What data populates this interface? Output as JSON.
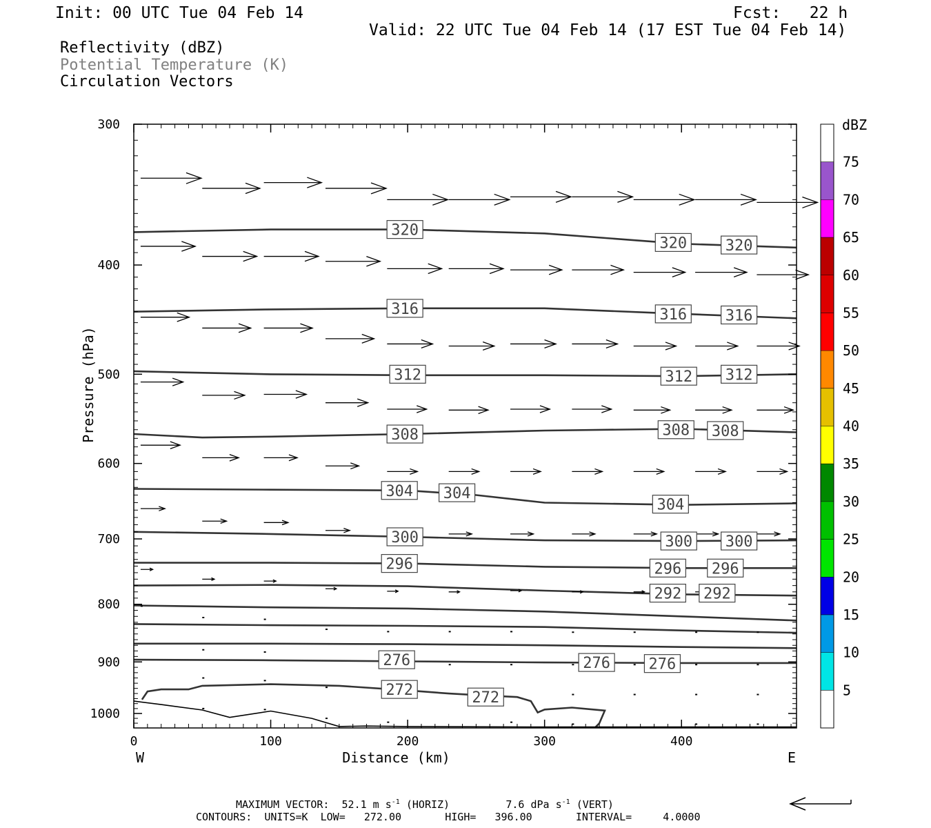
{
  "header": {
    "init": "Init: 00 UTC Tue 04 Feb 14",
    "fcst": "Fcst:   22 h",
    "valid": "Valid: 22 UTC Tue 04 Feb 14 (17 EST Tue 04 Feb 14)"
  },
  "legend": {
    "reflectivity": "Reflectivity (dBZ)",
    "theta": "Potential Temperature (K)",
    "vectors": "Circulation Vectors"
  },
  "footer": {
    "maxvec_label": "MAXIMUM VECTOR:",
    "horiz": "52.1 m s",
    "horiz_tag": "(HORIZ)",
    "vert": "7.6 dPa s",
    "vert_tag": "(VERT)",
    "exp": "-1",
    "contours": "CONTOURS:  UNITS=K  LOW=   272.00       HIGH=   396.00       INTERVAL=     4.0000"
  },
  "colors": {
    "contour": "#333333",
    "theta_text": "#808080"
  },
  "chart_data": {
    "type": "line",
    "title": "",
    "xlabel": "Distance (km)",
    "ylabel": "Pressure (hPa)",
    "xlim": [
      0,
      484
    ],
    "ylim": [
      1030,
      300
    ],
    "y_scale": "log",
    "xticks": [
      "0",
      "100",
      "200",
      "300",
      "400"
    ],
    "yticks": [
      "300",
      "400",
      "500",
      "600",
      "700",
      "800",
      "900",
      "1000"
    ],
    "x_end_labels": {
      "left": "W",
      "right": "E"
    },
    "colorbar": {
      "unit": "dBZ",
      "labels": [
        "5",
        "10",
        "15",
        "20",
        "25",
        "30",
        "35",
        "40",
        "45",
        "50",
        "55",
        "60",
        "65",
        "70",
        "75"
      ],
      "colors": [
        "#ffffff",
        "#00e5e5",
        "#0099e5",
        "#0000e5",
        "#00e500",
        "#00c000",
        "#008800",
        "#ffff00",
        "#e5c000",
        "#ff8800",
        "#ff0000",
        "#dd0000",
        "#bb0000",
        "#ff00ff",
        "#9955cc",
        "#ffffff"
      ]
    },
    "theta_contours": [
      {
        "level": 320,
        "x": [
          0,
          50,
          100,
          150,
          200,
          300,
          400,
          484
        ],
        "p": [
          374,
          373,
          372,
          372,
          372,
          375,
          383,
          386
        ],
        "labels": [
          [
            198,
            372,
            "320"
          ],
          [
            394,
            382,
            "320"
          ],
          [
            442,
            384,
            "320"
          ]
        ]
      },
      {
        "level": 316,
        "x": [
          0,
          100,
          200,
          300,
          380,
          484
        ],
        "p": [
          440,
          438,
          437,
          437,
          441,
          446
        ],
        "labels": [
          [
            198,
            437,
            "316"
          ],
          [
            394,
            442,
            "316"
          ],
          [
            442,
            443,
            "316"
          ]
        ]
      },
      {
        "level": 312,
        "x": [
          0,
          100,
          200,
          300,
          400,
          484
        ],
        "p": [
          497,
          500,
          501,
          501,
          502,
          500
        ],
        "labels": [
          [
            200,
            500,
            "312"
          ],
          [
            398,
            502,
            "312"
          ],
          [
            442,
            500,
            "312"
          ]
        ]
      },
      {
        "level": 308,
        "x": [
          0,
          50,
          100,
          200,
          300,
          400,
          484
        ],
        "p": [
          565,
          569,
          568,
          565,
          561,
          559,
          563
        ],
        "labels": [
          [
            198,
            565,
            "308"
          ],
          [
            396,
            560,
            "308"
          ],
          [
            432,
            561,
            "308"
          ]
        ]
      },
      {
        "level": 304,
        "x": [
          0,
          100,
          200,
          250,
          300,
          400,
          484
        ],
        "p": [
          632,
          633,
          634,
          640,
          650,
          653,
          651
        ],
        "labels": [
          [
            194,
            634,
            "304"
          ],
          [
            236,
            637,
            "304"
          ],
          [
            392,
            652,
            "304"
          ]
        ]
      },
      {
        "level": 300,
        "x": [
          0,
          100,
          200,
          300,
          400,
          484
        ],
        "p": [
          690,
          693,
          697,
          702,
          703,
          702
        ],
        "labels": [
          [
            198,
            697,
            "300"
          ],
          [
            398,
            703,
            "300"
          ],
          [
            442,
            703,
            "300"
          ]
        ]
      },
      {
        "level": 296,
        "x": [
          0,
          100,
          200,
          300,
          400,
          484
        ],
        "p": [
          735,
          735,
          736,
          741,
          743,
          743
        ],
        "labels": [
          [
            194,
            736,
            "296"
          ],
          [
            390,
            743,
            "296"
          ],
          [
            432,
            743,
            "296"
          ]
        ]
      },
      {
        "level": 292,
        "x": [
          0,
          100,
          200,
          300,
          400,
          484
        ],
        "p": [
          770,
          769,
          771,
          778,
          784,
          786
        ],
        "labels": [
          [
            390,
            782,
            "292"
          ],
          [
            426,
            782,
            "292"
          ]
        ]
      },
      {
        "level": 288,
        "x": [
          0,
          100,
          200,
          300,
          400,
          484
        ],
        "p": [
          802,
          805,
          807,
          812,
          820,
          827
        ],
        "labels": []
      },
      {
        "level": 284,
        "x": [
          0,
          100,
          200,
          300,
          400,
          484
        ],
        "p": [
          833,
          835,
          836,
          838,
          844,
          848
        ],
        "labels": []
      },
      {
        "level": 280,
        "x": [
          0,
          100,
          200,
          300,
          400,
          484
        ],
        "p": [
          867,
          867,
          868,
          870,
          873,
          875
        ],
        "labels": []
      },
      {
        "level": 276,
        "x": [
          0,
          100,
          200,
          300,
          400,
          484
        ],
        "p": [
          896,
          897,
          899,
          901,
          902,
          902
        ],
        "labels": [
          [
            192,
            896,
            "276"
          ],
          [
            338,
            901,
            "276"
          ],
          [
            386,
            903,
            "276"
          ]
        ]
      },
      {
        "level": 272,
        "x": [
          6,
          10,
          20,
          40,
          50,
          100,
          150,
          200,
          230,
          250,
          280,
          290,
          295,
          300,
          320,
          344,
          340,
          337
        ],
        "p": [
          972,
          956,
          952,
          952,
          945,
          942,
          945,
          954,
          960,
          963,
          967,
          975,
          998,
          992,
          988,
          994,
          1020,
          1029
        ],
        "labels": [
          [
            194,
            952,
            "272"
          ],
          [
            257,
            967,
            "272"
          ]
        ]
      }
    ],
    "terrain": {
      "x": [
        0,
        20,
        50,
        70,
        100,
        130,
        150,
        170,
        200,
        300,
        400,
        484
      ],
      "p": [
        975,
        982,
        993,
        1008,
        995,
        1010,
        1027,
        1026,
        1027,
        1028,
        1028,
        1028
      ]
    },
    "vectors": [
      {
        "x": 5,
        "p": 335,
        "u": 1.0
      },
      {
        "x": 50,
        "p": 342,
        "u": 0.95
      },
      {
        "x": 95,
        "p": 338,
        "u": 0.95
      },
      {
        "x": 140,
        "p": 342,
        "u": 1.0
      },
      {
        "x": 185,
        "p": 350,
        "u": 1.0
      },
      {
        "x": 230,
        "p": 350,
        "u": 1.0
      },
      {
        "x": 275,
        "p": 348,
        "u": 1.0
      },
      {
        "x": 320,
        "p": 348,
        "u": 1.0
      },
      {
        "x": 365,
        "p": 350,
        "u": 1.0
      },
      {
        "x": 410,
        "p": 350,
        "u": 1.0
      },
      {
        "x": 455,
        "p": 352,
        "u": 1.0
      },
      {
        "x": 5,
        "p": 385,
        "u": 0.9
      },
      {
        "x": 50,
        "p": 393,
        "u": 0.9
      },
      {
        "x": 95,
        "p": 393,
        "u": 0.9
      },
      {
        "x": 140,
        "p": 397,
        "u": 0.9
      },
      {
        "x": 185,
        "p": 403,
        "u": 0.9
      },
      {
        "x": 230,
        "p": 403,
        "u": 0.9
      },
      {
        "x": 275,
        "p": 404,
        "u": 0.85
      },
      {
        "x": 320,
        "p": 404,
        "u": 0.85
      },
      {
        "x": 365,
        "p": 406,
        "u": 0.85
      },
      {
        "x": 410,
        "p": 406,
        "u": 0.85
      },
      {
        "x": 455,
        "p": 408,
        "u": 0.85
      },
      {
        "x": 5,
        "p": 445,
        "u": 0.8
      },
      {
        "x": 50,
        "p": 455,
        "u": 0.8
      },
      {
        "x": 95,
        "p": 455,
        "u": 0.8
      },
      {
        "x": 140,
        "p": 465,
        "u": 0.8
      },
      {
        "x": 185,
        "p": 470,
        "u": 0.75
      },
      {
        "x": 230,
        "p": 472,
        "u": 0.75
      },
      {
        "x": 275,
        "p": 470,
        "u": 0.75
      },
      {
        "x": 320,
        "p": 470,
        "u": 0.75
      },
      {
        "x": 365,
        "p": 472,
        "u": 0.7
      },
      {
        "x": 410,
        "p": 472,
        "u": 0.7
      },
      {
        "x": 455,
        "p": 472,
        "u": 0.7
      },
      {
        "x": 5,
        "p": 508,
        "u": 0.7
      },
      {
        "x": 50,
        "p": 522,
        "u": 0.7
      },
      {
        "x": 95,
        "p": 521,
        "u": 0.7
      },
      {
        "x": 140,
        "p": 530,
        "u": 0.7
      },
      {
        "x": 185,
        "p": 537,
        "u": 0.65
      },
      {
        "x": 230,
        "p": 538,
        "u": 0.65
      },
      {
        "x": 275,
        "p": 537,
        "u": 0.65
      },
      {
        "x": 320,
        "p": 537,
        "u": 0.65
      },
      {
        "x": 365,
        "p": 538,
        "u": 0.6
      },
      {
        "x": 410,
        "p": 538,
        "u": 0.6
      },
      {
        "x": 455,
        "p": 538,
        "u": 0.6
      },
      {
        "x": 5,
        "p": 578,
        "u": 0.65
      },
      {
        "x": 50,
        "p": 593,
        "u": 0.6
      },
      {
        "x": 95,
        "p": 593,
        "u": 0.55
      },
      {
        "x": 140,
        "p": 603,
        "u": 0.55
      },
      {
        "x": 185,
        "p": 610,
        "u": 0.5
      },
      {
        "x": 230,
        "p": 610,
        "u": 0.5
      },
      {
        "x": 275,
        "p": 610,
        "u": 0.5
      },
      {
        "x": 320,
        "p": 610,
        "u": 0.5
      },
      {
        "x": 365,
        "p": 610,
        "u": 0.5
      },
      {
        "x": 410,
        "p": 610,
        "u": 0.5
      },
      {
        "x": 455,
        "p": 610,
        "u": 0.5
      },
      {
        "x": 5,
        "p": 658,
        "u": 0.4
      },
      {
        "x": 50,
        "p": 675,
        "u": 0.4
      },
      {
        "x": 95,
        "p": 677,
        "u": 0.4
      },
      {
        "x": 140,
        "p": 688,
        "u": 0.4
      },
      {
        "x": 185,
        "p": 693,
        "u": 0.38
      },
      {
        "x": 230,
        "p": 693,
        "u": 0.38
      },
      {
        "x": 275,
        "p": 693,
        "u": 0.38
      },
      {
        "x": 320,
        "p": 693,
        "u": 0.38
      },
      {
        "x": 365,
        "p": 693,
        "u": 0.38
      },
      {
        "x": 410,
        "p": 693,
        "u": 0.38
      },
      {
        "x": 455,
        "p": 693,
        "u": 0.38
      },
      {
        "x": 5,
        "p": 745,
        "u": 0.2
      },
      {
        "x": 50,
        "p": 760,
        "u": 0.2
      },
      {
        "x": 95,
        "p": 763,
        "u": 0.2
      },
      {
        "x": 140,
        "p": 775,
        "u": 0.18
      },
      {
        "x": 185,
        "p": 779,
        "u": 0.18
      },
      {
        "x": 230,
        "p": 780,
        "u": 0.18
      },
      {
        "x": 275,
        "p": 778,
        "u": 0.18
      },
      {
        "x": 320,
        "p": 780,
        "u": 0.18
      },
      {
        "x": 365,
        "p": 780,
        "u": 0.18
      },
      {
        "x": 410,
        "p": 780,
        "u": 0.18
      },
      {
        "x": 5,
        "p": 803,
        "u": 0.06
      },
      {
        "x": 50,
        "p": 822,
        "u": 0.06
      },
      {
        "x": 95,
        "p": 825,
        "u": 0.06
      },
      {
        "x": 140,
        "p": 842,
        "u": 0.05
      },
      {
        "x": 185,
        "p": 846,
        "u": 0.05
      },
      {
        "x": 230,
        "p": 846,
        "u": 0.05
      },
      {
        "x": 275,
        "p": 846,
        "u": 0.05
      },
      {
        "x": 320,
        "p": 847,
        "u": 0.05
      },
      {
        "x": 365,
        "p": 847,
        "u": 0.05
      },
      {
        "x": 410,
        "p": 847,
        "u": 0.05
      },
      {
        "x": 455,
        "p": 847,
        "u": 0.05
      },
      {
        "x": 50,
        "p": 878,
        "u": 0.03
      },
      {
        "x": 95,
        "p": 882,
        "u": 0.03
      },
      {
        "x": 230,
        "p": 905,
        "u": 0.03
      },
      {
        "x": 275,
        "p": 905,
        "u": 0.03
      },
      {
        "x": 320,
        "p": 905,
        "u": 0.03
      },
      {
        "x": 365,
        "p": 905,
        "u": 0.03
      },
      {
        "x": 410,
        "p": 905,
        "u": 0.03
      },
      {
        "x": 455,
        "p": 905,
        "u": 0.03
      },
      {
        "x": 50,
        "p": 930,
        "u": 0.03
      },
      {
        "x": 95,
        "p": 935,
        "u": 0.03
      },
      {
        "x": 140,
        "p": 948,
        "u": 0.03
      },
      {
        "x": 185,
        "p": 955,
        "u": 0.03
      },
      {
        "x": 320,
        "p": 962,
        "u": 0.03
      },
      {
        "x": 365,
        "p": 962,
        "u": 0.03
      },
      {
        "x": 410,
        "p": 962,
        "u": 0.03
      },
      {
        "x": 455,
        "p": 962,
        "u": 0.03
      },
      {
        "x": 50,
        "p": 990,
        "u": 0.03
      },
      {
        "x": 95,
        "p": 992,
        "u": 0.03
      },
      {
        "x": 140,
        "p": 1010,
        "u": 0.03
      },
      {
        "x": 185,
        "p": 1018,
        "u": 0.03
      },
      {
        "x": 275,
        "p": 1018,
        "u": 0.03
      },
      {
        "x": 320,
        "p": 1022,
        "u": 0.03
      },
      {
        "x": 410,
        "p": 1022,
        "u": 0.03
      },
      {
        "x": 455,
        "p": 1022,
        "u": 0.03
      }
    ]
  }
}
